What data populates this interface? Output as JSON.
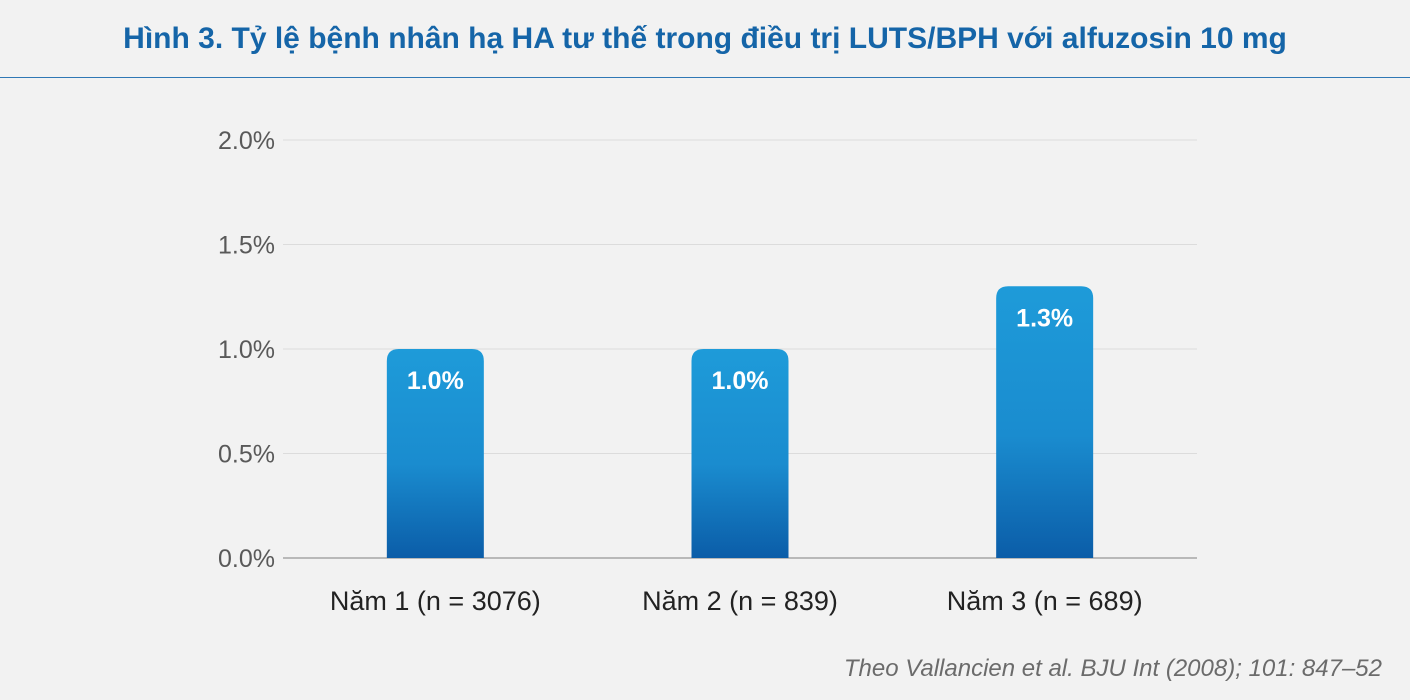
{
  "title": "Hình 3. Tỷ lệ bệnh nhân hạ HA tư thế trong điều trị LUTS/BPH với alfuzosin 10 mg",
  "source": "Theo Vallancien et al. BJU Int (2008); 101: 847–52",
  "colors": {
    "title": "#1565a8",
    "bar_top": "#1e9bd9",
    "bar_bottom": "#0b5da8",
    "grid": "#dcdcdc",
    "axis": "#a6a6a6"
  },
  "chart_data": {
    "type": "bar",
    "title": "Hình 3. Tỷ lệ bệnh nhân hạ HA tư thế trong điều trị LUTS/BPH với alfuzosin 10 mg",
    "categories": [
      "Năm 1 (n = 3076)",
      "Năm 2 (n = 839)",
      "Năm 3 (n = 689)"
    ],
    "values": [
      1.0,
      1.0,
      1.3
    ],
    "data_labels": [
      "1.0%",
      "1.0%",
      "1.3%"
    ],
    "unit": "%",
    "xlabel": "",
    "ylabel": "",
    "ylim": [
      0,
      2.0
    ],
    "yticks": [
      0.0,
      0.5,
      1.0,
      1.5,
      2.0
    ],
    "ytick_labels": [
      "0.0%",
      "0.5%",
      "1.0%",
      "1.5%",
      "2.0%"
    ],
    "grid": true,
    "legend": false
  }
}
